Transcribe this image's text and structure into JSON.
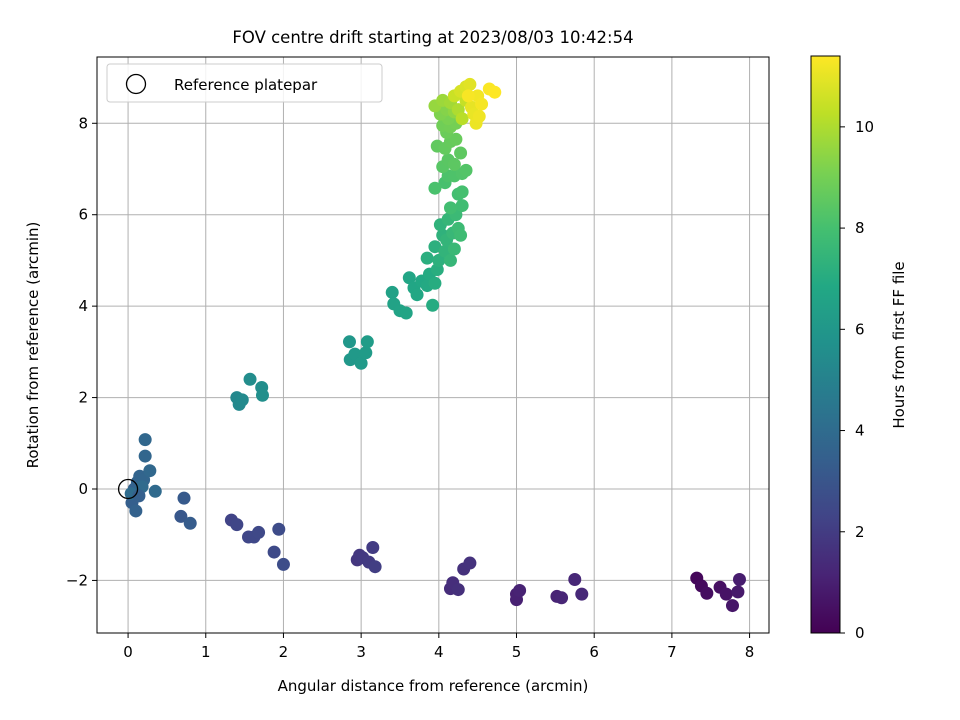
{
  "chart_data": {
    "type": "scatter",
    "title": "FOV centre drift starting at 2023/08/03 10:42:54",
    "xlabel": "Angular distance from reference (arcmin)",
    "ylabel": "Rotation from reference (arcmin)",
    "xlim": [
      -0.4,
      8.25
    ],
    "ylim": [
      -3.15,
      9.45
    ],
    "xticks": [
      0,
      1,
      2,
      3,
      4,
      5,
      6,
      7,
      8
    ],
    "yticks": [
      -2,
      0,
      2,
      4,
      6,
      8
    ],
    "grid": true,
    "legend": {
      "placement": "upper-left",
      "entries": [
        "Reference platepar"
      ]
    },
    "reference_point": {
      "x": 0,
      "y": 0
    },
    "colorbar": {
      "label": "Hours from first FF file",
      "range": [
        0,
        11.4
      ],
      "ticks": [
        0,
        2,
        4,
        6,
        8,
        10
      ],
      "colormap": "viridis"
    },
    "points": [
      {
        "x": 7.32,
        "y": -1.95,
        "h": 0.2
      },
      {
        "x": 7.38,
        "y": -2.12,
        "h": 0.3
      },
      {
        "x": 7.45,
        "y": -2.28,
        "h": 0.4
      },
      {
        "x": 7.62,
        "y": -2.15,
        "h": 0.5
      },
      {
        "x": 7.7,
        "y": -2.3,
        "h": 0.6
      },
      {
        "x": 7.78,
        "y": -2.55,
        "h": 0.7
      },
      {
        "x": 7.85,
        "y": -2.25,
        "h": 0.8
      },
      {
        "x": 7.87,
        "y": -1.98,
        "h": 0.9
      },
      {
        "x": 5.0,
        "y": -2.3,
        "h": 1.0
      },
      {
        "x": 5.0,
        "y": -2.42,
        "h": 1.05
      },
      {
        "x": 5.04,
        "y": -2.22,
        "h": 1.1
      },
      {
        "x": 5.52,
        "y": -2.35,
        "h": 1.15
      },
      {
        "x": 5.58,
        "y": -2.38,
        "h": 1.2
      },
      {
        "x": 5.75,
        "y": -1.98,
        "h": 1.25
      },
      {
        "x": 5.84,
        "y": -2.3,
        "h": 1.3
      },
      {
        "x": 4.15,
        "y": -2.18,
        "h": 1.45
      },
      {
        "x": 4.18,
        "y": -2.05,
        "h": 1.5
      },
      {
        "x": 4.25,
        "y": -2.2,
        "h": 1.55
      },
      {
        "x": 4.32,
        "y": -1.75,
        "h": 1.6
      },
      {
        "x": 4.4,
        "y": -1.62,
        "h": 1.65
      },
      {
        "x": 2.95,
        "y": -1.55,
        "h": 1.8
      },
      {
        "x": 2.98,
        "y": -1.45,
        "h": 1.85
      },
      {
        "x": 3.02,
        "y": -1.5,
        "h": 1.9
      },
      {
        "x": 3.1,
        "y": -1.6,
        "h": 1.95
      },
      {
        "x": 3.15,
        "y": -1.28,
        "h": 2.0
      },
      {
        "x": 3.18,
        "y": -1.7,
        "h": 2.05
      },
      {
        "x": 1.33,
        "y": -0.68,
        "h": 2.3
      },
      {
        "x": 1.4,
        "y": -0.78,
        "h": 2.35
      },
      {
        "x": 1.55,
        "y": -1.05,
        "h": 2.4
      },
      {
        "x": 1.62,
        "y": -1.05,
        "h": 2.45
      },
      {
        "x": 1.68,
        "y": -0.95,
        "h": 2.5
      },
      {
        "x": 1.88,
        "y": -1.38,
        "h": 2.55
      },
      {
        "x": 1.94,
        "y": -0.88,
        "h": 2.6
      },
      {
        "x": 2.0,
        "y": -1.65,
        "h": 2.65
      },
      {
        "x": 0.68,
        "y": -0.6,
        "h": 3.1
      },
      {
        "x": 0.72,
        "y": -0.2,
        "h": 3.2
      },
      {
        "x": 0.8,
        "y": -0.75,
        "h": 3.3
      },
      {
        "x": 0.05,
        "y": -0.3,
        "h": 3.4
      },
      {
        "x": 0.08,
        "y": 0.0,
        "h": 3.5
      },
      {
        "x": 0.1,
        "y": -0.48,
        "h": 3.55
      },
      {
        "x": 0.12,
        "y": 0.15,
        "h": 3.6
      },
      {
        "x": 0.15,
        "y": 0.28,
        "h": 3.65
      },
      {
        "x": 0.2,
        "y": 0.2,
        "h": 3.7
      },
      {
        "x": 0.22,
        "y": 0.72,
        "h": 3.75
      },
      {
        "x": 0.22,
        "y": 1.08,
        "h": 3.8
      },
      {
        "x": 0.28,
        "y": 0.4,
        "h": 3.85
      },
      {
        "x": 0.35,
        "y": -0.05,
        "h": 3.9
      },
      {
        "x": 0.18,
        "y": 0.05,
        "h": 3.95
      },
      {
        "x": 0.04,
        "y": -0.1,
        "h": 4.0
      },
      {
        "x": 0.14,
        "y": -0.15,
        "h": 3.45
      },
      {
        "x": 1.4,
        "y": 2.0,
        "h": 5.3
      },
      {
        "x": 1.43,
        "y": 1.85,
        "h": 5.35
      },
      {
        "x": 1.47,
        "y": 1.95,
        "h": 5.4
      },
      {
        "x": 1.57,
        "y": 2.4,
        "h": 5.5
      },
      {
        "x": 1.72,
        "y": 2.22,
        "h": 5.55
      },
      {
        "x": 1.73,
        "y": 2.05,
        "h": 5.6
      },
      {
        "x": 2.85,
        "y": 3.22,
        "h": 6.0
      },
      {
        "x": 2.86,
        "y": 2.83,
        "h": 6.05
      },
      {
        "x": 2.92,
        "y": 2.95,
        "h": 6.1
      },
      {
        "x": 3.0,
        "y": 2.75,
        "h": 6.15
      },
      {
        "x": 3.06,
        "y": 2.98,
        "h": 6.2
      },
      {
        "x": 3.08,
        "y": 3.22,
        "h": 6.25
      },
      {
        "x": 3.4,
        "y": 4.3,
        "h": 6.5
      },
      {
        "x": 3.42,
        "y": 4.05,
        "h": 6.55
      },
      {
        "x": 3.5,
        "y": 3.9,
        "h": 6.6
      },
      {
        "x": 3.58,
        "y": 3.85,
        "h": 6.65
      },
      {
        "x": 3.62,
        "y": 4.62,
        "h": 6.7
      },
      {
        "x": 3.68,
        "y": 4.4,
        "h": 6.75
      },
      {
        "x": 3.72,
        "y": 4.25,
        "h": 6.8
      },
      {
        "x": 3.78,
        "y": 4.55,
        "h": 6.85
      },
      {
        "x": 3.85,
        "y": 4.45,
        "h": 6.9
      },
      {
        "x": 3.88,
        "y": 4.7,
        "h": 6.95
      },
      {
        "x": 3.92,
        "y": 4.02,
        "h": 7.0
      },
      {
        "x": 3.95,
        "y": 4.5,
        "h": 7.05
      },
      {
        "x": 3.98,
        "y": 4.8,
        "h": 7.1
      },
      {
        "x": 3.85,
        "y": 5.05,
        "h": 7.15
      },
      {
        "x": 3.95,
        "y": 5.3,
        "h": 7.2
      },
      {
        "x": 4.0,
        "y": 5.0,
        "h": 7.25
      },
      {
        "x": 4.05,
        "y": 5.55,
        "h": 7.3
      },
      {
        "x": 4.02,
        "y": 5.78,
        "h": 7.35
      },
      {
        "x": 4.08,
        "y": 5.2,
        "h": 7.4
      },
      {
        "x": 4.1,
        "y": 5.45,
        "h": 7.45
      },
      {
        "x": 4.12,
        "y": 5.9,
        "h": 7.5
      },
      {
        "x": 4.15,
        "y": 5.0,
        "h": 7.55
      },
      {
        "x": 4.18,
        "y": 5.6,
        "h": 7.6
      },
      {
        "x": 4.2,
        "y": 5.25,
        "h": 7.65
      },
      {
        "x": 4.22,
        "y": 6.0,
        "h": 7.7
      },
      {
        "x": 4.25,
        "y": 5.7,
        "h": 7.75
      },
      {
        "x": 4.28,
        "y": 5.55,
        "h": 7.8
      },
      {
        "x": 4.3,
        "y": 6.2,
        "h": 7.85
      },
      {
        "x": 4.15,
        "y": 6.15,
        "h": 7.9
      },
      {
        "x": 4.25,
        "y": 6.45,
        "h": 7.95
      },
      {
        "x": 4.3,
        "y": 6.5,
        "h": 8.0
      },
      {
        "x": 4.08,
        "y": 6.7,
        "h": 8.05
      },
      {
        "x": 3.95,
        "y": 6.58,
        "h": 8.1
      },
      {
        "x": 4.12,
        "y": 6.85,
        "h": 8.15
      },
      {
        "x": 4.2,
        "y": 6.85,
        "h": 8.2
      },
      {
        "x": 4.3,
        "y": 6.9,
        "h": 8.25
      },
      {
        "x": 4.35,
        "y": 6.97,
        "h": 8.3
      },
      {
        "x": 4.05,
        "y": 7.05,
        "h": 8.4
      },
      {
        "x": 4.12,
        "y": 7.2,
        "h": 8.45
      },
      {
        "x": 4.2,
        "y": 7.1,
        "h": 8.5
      },
      {
        "x": 4.28,
        "y": 7.35,
        "h": 8.55
      },
      {
        "x": 3.98,
        "y": 7.5,
        "h": 8.6
      },
      {
        "x": 4.08,
        "y": 7.45,
        "h": 8.65
      },
      {
        "x": 4.15,
        "y": 7.6,
        "h": 8.7
      },
      {
        "x": 4.22,
        "y": 7.65,
        "h": 8.75
      },
      {
        "x": 4.1,
        "y": 7.8,
        "h": 8.8
      },
      {
        "x": 4.05,
        "y": 7.95,
        "h": 8.9
      },
      {
        "x": 4.15,
        "y": 7.92,
        "h": 8.95
      },
      {
        "x": 4.22,
        "y": 8.0,
        "h": 9.0
      },
      {
        "x": 4.12,
        "y": 8.1,
        "h": 9.1
      },
      {
        "x": 4.02,
        "y": 8.2,
        "h": 9.2
      },
      {
        "x": 4.1,
        "y": 8.3,
        "h": 9.3
      },
      {
        "x": 4.2,
        "y": 8.25,
        "h": 9.5
      },
      {
        "x": 3.95,
        "y": 8.38,
        "h": 9.6
      },
      {
        "x": 4.05,
        "y": 8.5,
        "h": 9.7
      },
      {
        "x": 4.15,
        "y": 8.45,
        "h": 9.8
      },
      {
        "x": 4.25,
        "y": 8.3,
        "h": 10.0
      },
      {
        "x": 4.3,
        "y": 8.1,
        "h": 10.2
      },
      {
        "x": 4.35,
        "y": 8.5,
        "h": 10.4
      },
      {
        "x": 4.2,
        "y": 8.6,
        "h": 10.5
      },
      {
        "x": 4.28,
        "y": 8.7,
        "h": 10.7
      },
      {
        "x": 4.35,
        "y": 8.8,
        "h": 10.8
      },
      {
        "x": 4.4,
        "y": 8.85,
        "h": 10.9
      },
      {
        "x": 4.42,
        "y": 8.35,
        "h": 11.0
      },
      {
        "x": 4.45,
        "y": 8.2,
        "h": 11.05
      },
      {
        "x": 4.48,
        "y": 8.0,
        "h": 11.1
      },
      {
        "x": 4.52,
        "y": 8.15,
        "h": 11.15
      },
      {
        "x": 4.5,
        "y": 8.6,
        "h": 11.2
      },
      {
        "x": 4.55,
        "y": 8.42,
        "h": 11.25
      },
      {
        "x": 4.38,
        "y": 8.6,
        "h": 11.3
      },
      {
        "x": 4.65,
        "y": 8.75,
        "h": 11.35
      },
      {
        "x": 4.72,
        "y": 8.68,
        "h": 11.4
      }
    ]
  }
}
